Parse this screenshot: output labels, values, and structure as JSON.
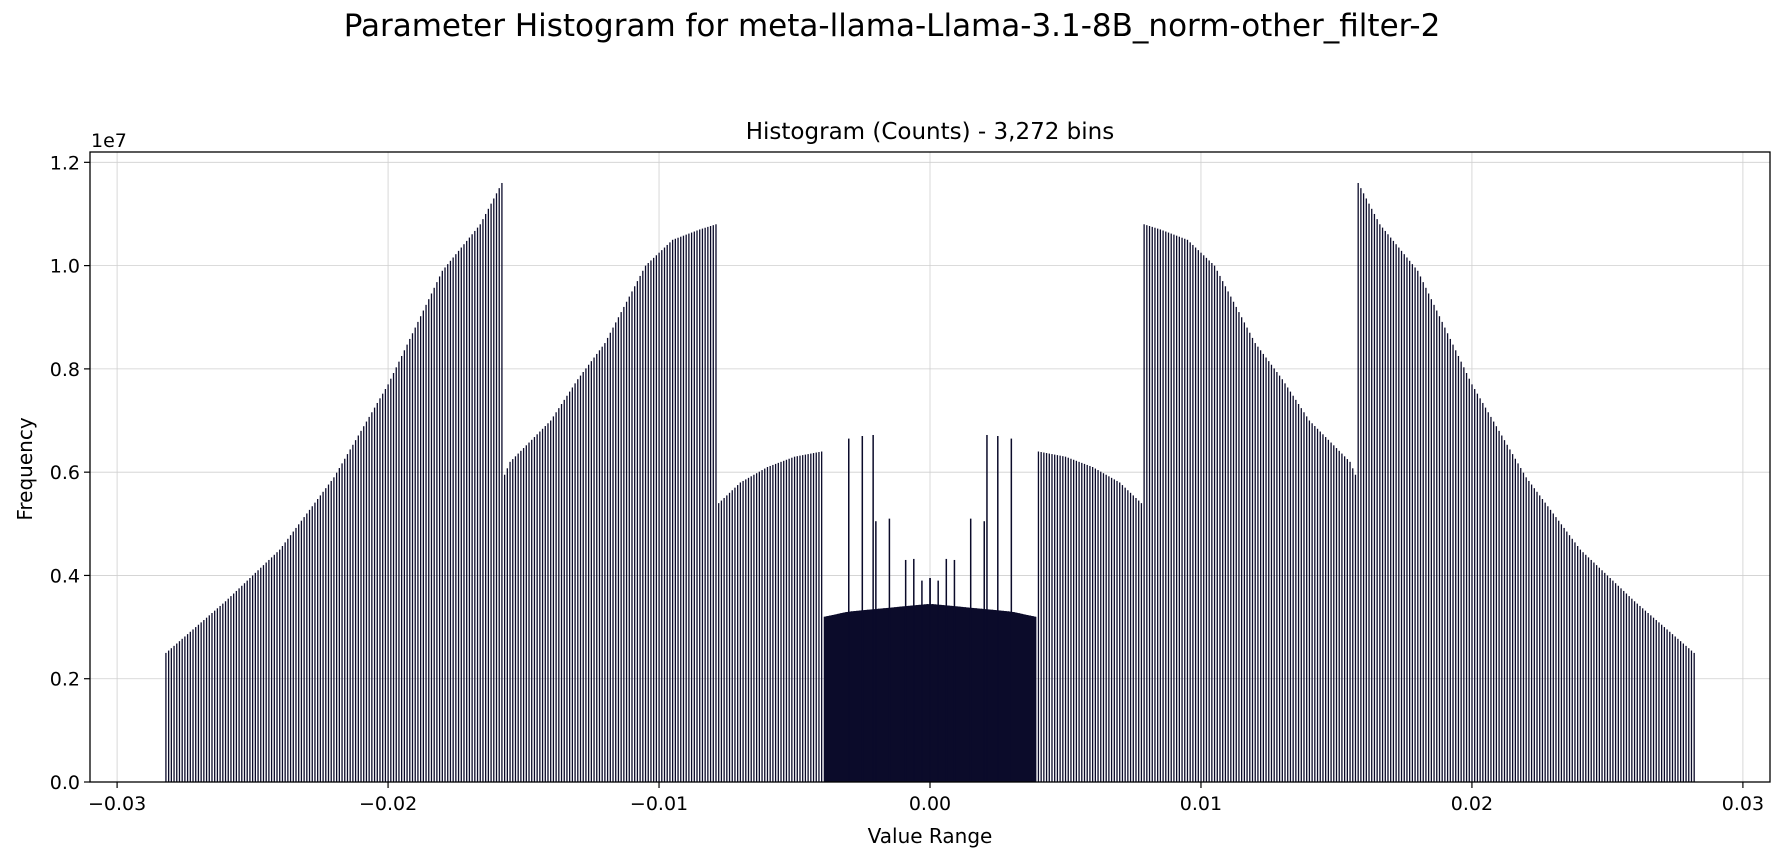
{
  "figure": {
    "suptitle": "Parameter Histogram for meta-llama-Llama-3.1-8B_norm-other_filter-2"
  },
  "chart_data": {
    "type": "bar",
    "title": "Histogram (Counts) - 3,272 bins",
    "xlabel": "Value Range",
    "ylabel": "Frequency",
    "y_scale_label": "1e7",
    "xlim": [
      -0.031,
      0.031
    ],
    "ylim": [
      0,
      12200000
    ],
    "xticks": [
      -0.03,
      -0.02,
      -0.01,
      0.0,
      0.01,
      0.02,
      0.03
    ],
    "xtick_labels": [
      "−0.03",
      "−0.02",
      "−0.01",
      "0.00",
      "0.01",
      "0.02",
      "0.03"
    ],
    "yticks": [
      0,
      2000000,
      4000000,
      6000000,
      8000000,
      10000000,
      12000000
    ],
    "ytick_labels": [
      "0.0",
      "0.2",
      "0.4",
      "0.6",
      "0.8",
      "1.0",
      "1.2"
    ],
    "grid": true,
    "bar_color": "#0b0b2a",
    "n_bins": 3272,
    "note_values": "approximate envelope of bar heights (symmetric about 0); x in parameter value, y in counts",
    "series": [
      {
        "values_x": [
          -0.0282,
          -0.026,
          -0.024,
          -0.022,
          -0.02,
          -0.018,
          -0.0166,
          -0.0158,
          -0.01575,
          -0.0157,
          -0.0155,
          -0.014,
          -0.013,
          -0.012,
          -0.0105,
          -0.0095,
          -0.0085,
          -0.0079,
          -0.0078,
          -0.0076,
          -0.007,
          -0.006,
          -0.005,
          -0.004,
          -0.0039,
          -0.003,
          -0.002,
          -0.001,
          0.0
        ],
        "values_y": [
          2500000,
          3500000,
          4500000,
          5900000,
          7700000,
          9900000,
          10800000,
          11600000,
          9000000,
          5950000,
          6200000,
          7000000,
          7800000,
          8500000,
          10000000,
          10500000,
          10700000,
          10800000,
          5400000,
          5500000,
          5800000,
          6100000,
          6300000,
          6400000,
          3200000,
          3300000,
          3350000,
          3400000,
          3450000
        ]
      }
    ],
    "spikes": [
      {
        "x": -0.003,
        "y": 6650000
      },
      {
        "x": -0.0025,
        "y": 6700000
      },
      {
        "x": -0.0021,
        "y": 6720000
      },
      {
        "x": -0.002,
        "y": 5050000
      },
      {
        "x": -0.0015,
        "y": 5100000
      },
      {
        "x": -0.0009,
        "y": 4300000
      },
      {
        "x": -0.0006,
        "y": 4320000
      },
      {
        "x": -0.0003,
        "y": 3900000
      },
      {
        "x": 0.0,
        "y": 3950000
      }
    ]
  }
}
